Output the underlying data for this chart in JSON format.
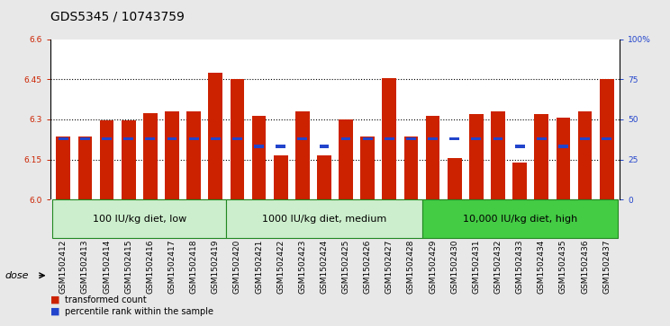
{
  "title": "GDS5345 / 10743759",
  "samples": [
    "GSM1502412",
    "GSM1502413",
    "GSM1502414",
    "GSM1502415",
    "GSM1502416",
    "GSM1502417",
    "GSM1502418",
    "GSM1502419",
    "GSM1502420",
    "GSM1502421",
    "GSM1502422",
    "GSM1502423",
    "GSM1502424",
    "GSM1502425",
    "GSM1502426",
    "GSM1502427",
    "GSM1502428",
    "GSM1502429",
    "GSM1502430",
    "GSM1502431",
    "GSM1502432",
    "GSM1502433",
    "GSM1502434",
    "GSM1502435",
    "GSM1502436",
    "GSM1502437"
  ],
  "bar_values": [
    6.235,
    6.235,
    6.295,
    6.295,
    6.325,
    6.33,
    6.33,
    6.475,
    6.45,
    6.315,
    6.165,
    6.33,
    6.165,
    6.3,
    6.235,
    6.455,
    6.235,
    6.315,
    6.155,
    6.32,
    6.33,
    6.14,
    6.32,
    6.305,
    6.33,
    6.45
  ],
  "blue_percentiles": [
    38,
    38,
    38,
    38,
    38,
    38,
    38,
    38,
    38,
    33,
    33,
    38,
    33,
    38,
    38,
    38,
    38,
    38,
    38,
    38,
    38,
    33,
    38,
    33,
    38,
    38
  ],
  "ymin": 6.0,
  "ymax": 6.6,
  "yticks": [
    6.0,
    6.15,
    6.3,
    6.45,
    6.6
  ],
  "right_yticks": [
    0,
    25,
    50,
    75,
    100
  ],
  "right_yticklabels": [
    "0",
    "25",
    "50",
    "75",
    "100%"
  ],
  "bar_color": "#cc2200",
  "blue_color": "#2244cc",
  "groups": [
    {
      "label": "100 IU/kg diet, low",
      "start": 0,
      "end": 7,
      "color": "#cceecc"
    },
    {
      "label": "1000 IU/kg diet, medium",
      "start": 8,
      "end": 16,
      "color": "#cceecc"
    },
    {
      "label": "10,000 IU/kg diet, high",
      "start": 17,
      "end": 25,
      "color": "#44cc44"
    }
  ],
  "group_border_color": "#228822",
  "dose_label": "dose",
  "legend_red": "transformed count",
  "legend_blue": "percentile rank within the sample",
  "bg_color": "#e8e8e8",
  "plot_bg": "#ffffff",
  "title_fontsize": 10,
  "tick_fontsize": 6.5,
  "label_fontsize": 8
}
